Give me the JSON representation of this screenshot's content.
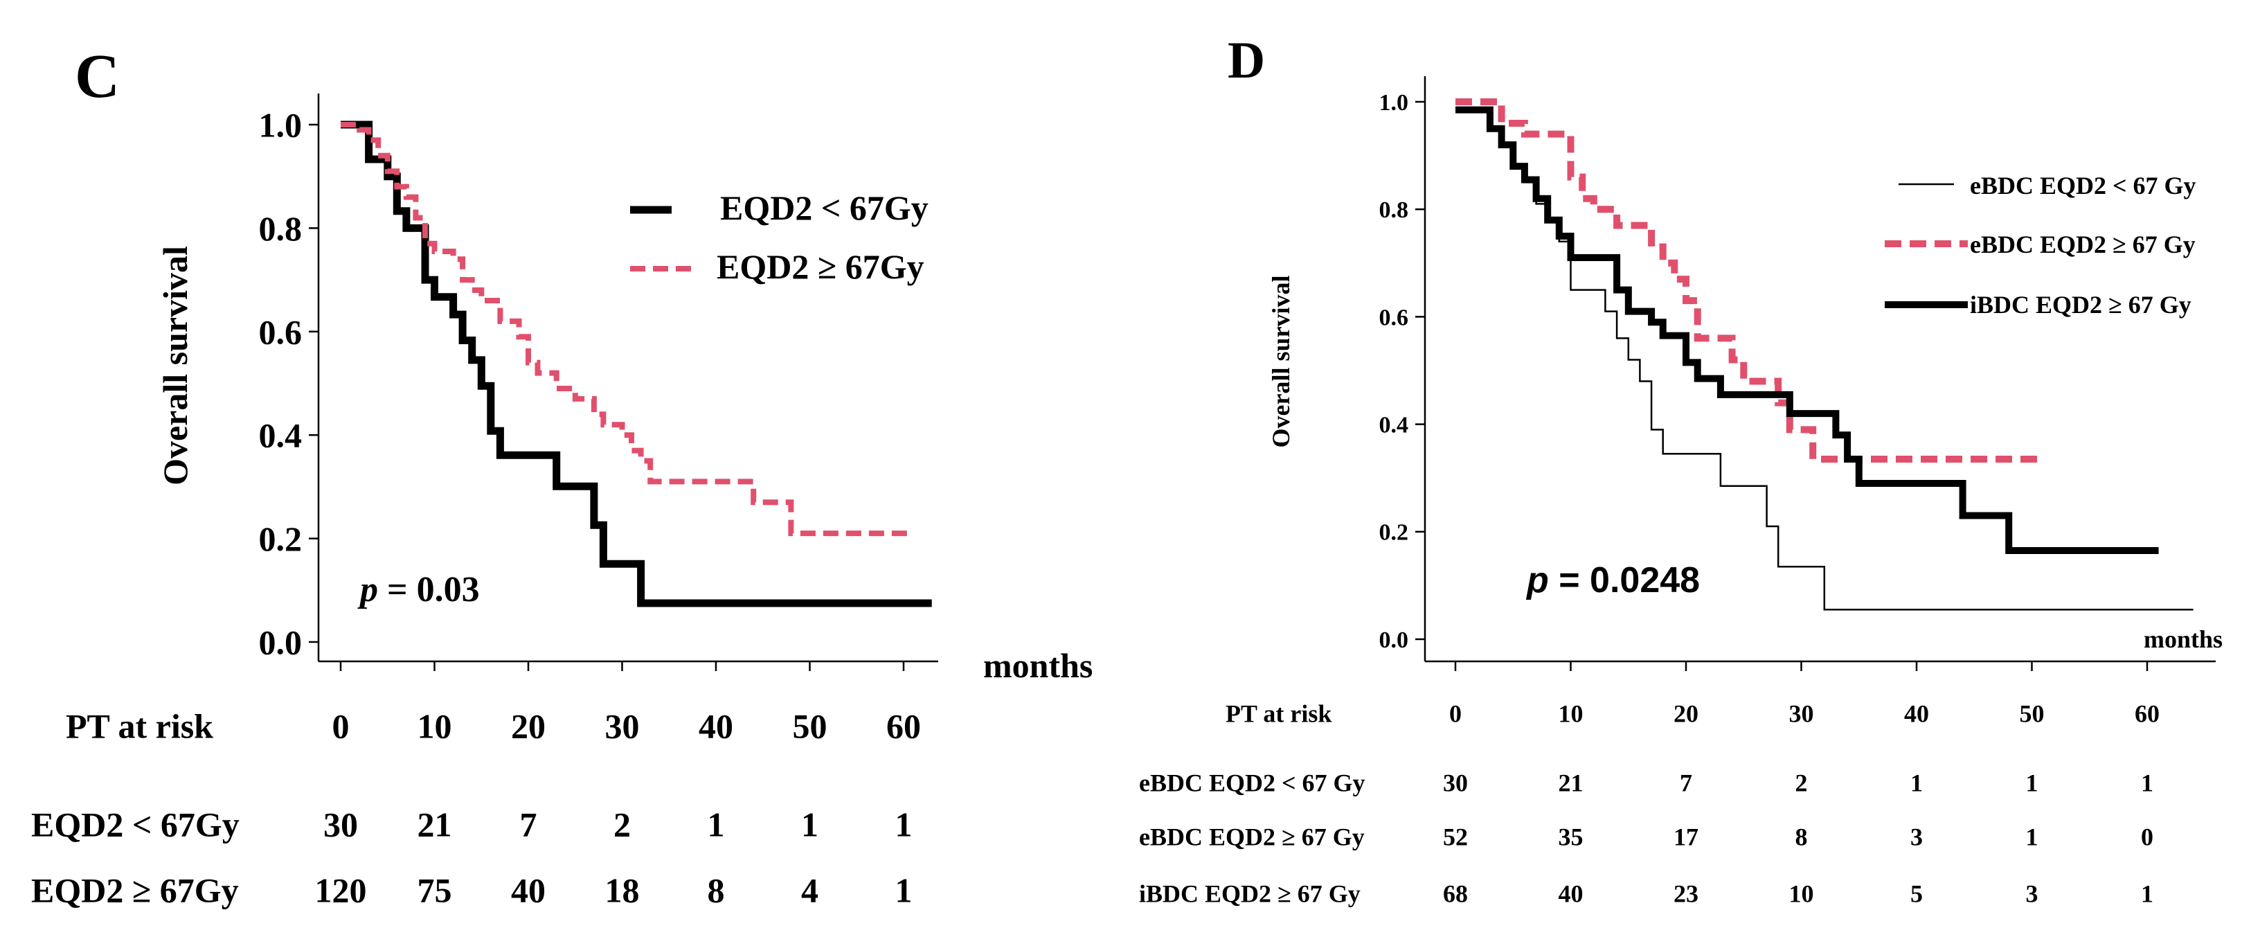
{
  "colors": {
    "black": "#000000",
    "pink": "#e0506c"
  },
  "chart_data": [
    {
      "type": "line",
      "subtype": "kaplan-meier",
      "panel": "C",
      "ylabel": "Overall survival",
      "xlabel": "months",
      "xlim": [
        0,
        63
      ],
      "ylim": [
        0,
        1
      ],
      "yticks": [
        "0.0",
        "0.2",
        "0.4",
        "0.6",
        "0.8",
        "1.0"
      ],
      "xticks": [
        "0",
        "10",
        "20",
        "30",
        "40",
        "50",
        "60"
      ],
      "p_label": "p",
      "p_value": "= 0.03",
      "series": [
        {
          "name": "EQD2 < 67Gy",
          "color": "#000000",
          "style": "solid",
          "points": [
            [
              0,
              1.0
            ],
            [
              3,
              1.0
            ],
            [
              3,
              0.933
            ],
            [
              5,
              0.933
            ],
            [
              5,
              0.9
            ],
            [
              6,
              0.9
            ],
            [
              6,
              0.833
            ],
            [
              7,
              0.833
            ],
            [
              7,
              0.8
            ],
            [
              9,
              0.8
            ],
            [
              9,
              0.7
            ],
            [
              10,
              0.7
            ],
            [
              10,
              0.667
            ],
            [
              12,
              0.667
            ],
            [
              12,
              0.633
            ],
            [
              13,
              0.633
            ],
            [
              13,
              0.583
            ],
            [
              14,
              0.583
            ],
            [
              14,
              0.545
            ],
            [
              15,
              0.545
            ],
            [
              15,
              0.495
            ],
            [
              16,
              0.495
            ],
            [
              16,
              0.408
            ],
            [
              17,
              0.408
            ],
            [
              17,
              0.361
            ],
            [
              23,
              0.361
            ],
            [
              23,
              0.301
            ],
            [
              27,
              0.301
            ],
            [
              27,
              0.226
            ],
            [
              28,
              0.226
            ],
            [
              28,
              0.151
            ],
            [
              32,
              0.151
            ],
            [
              32,
              0.075
            ],
            [
              63,
              0.075
            ]
          ]
        },
        {
          "name": "EQD2 ≥ 67Gy",
          "color": "#e0506c",
          "style": "dashed",
          "points": [
            [
              0,
              1.0
            ],
            [
              2,
              1.0
            ],
            [
              2,
              0.99
            ],
            [
              3,
              0.99
            ],
            [
              3,
              0.97
            ],
            [
              4,
              0.97
            ],
            [
              4,
              0.94
            ],
            [
              5,
              0.94
            ],
            [
              5,
              0.91
            ],
            [
              6,
              0.91
            ],
            [
              6,
              0.88
            ],
            [
              7,
              0.88
            ],
            [
              7,
              0.86
            ],
            [
              8,
              0.86
            ],
            [
              8,
              0.82
            ],
            [
              9,
              0.82
            ],
            [
              9,
              0.77
            ],
            [
              10,
              0.77
            ],
            [
              10,
              0.755
            ],
            [
              12,
              0.755
            ],
            [
              12,
              0.74
            ],
            [
              13,
              0.74
            ],
            [
              13,
              0.7
            ],
            [
              14,
              0.7
            ],
            [
              14,
              0.68
            ],
            [
              15,
              0.68
            ],
            [
              15,
              0.66
            ],
            [
              17,
              0.66
            ],
            [
              17,
              0.62
            ],
            [
              19,
              0.62
            ],
            [
              19,
              0.59
            ],
            [
              20,
              0.59
            ],
            [
              20,
              0.54
            ],
            [
              21,
              0.54
            ],
            [
              21,
              0.52
            ],
            [
              23,
              0.52
            ],
            [
              23,
              0.49
            ],
            [
              25,
              0.49
            ],
            [
              25,
              0.47
            ],
            [
              27,
              0.47
            ],
            [
              27,
              0.44
            ],
            [
              28,
              0.44
            ],
            [
              28,
              0.42
            ],
            [
              30,
              0.42
            ],
            [
              30,
              0.4
            ],
            [
              31,
              0.4
            ],
            [
              31,
              0.37
            ],
            [
              32,
              0.37
            ],
            [
              32,
              0.35
            ],
            [
              33,
              0.35
            ],
            [
              33,
              0.31
            ],
            [
              44,
              0.31
            ],
            [
              44,
              0.27
            ],
            [
              48,
              0.27
            ],
            [
              48,
              0.21
            ],
            [
              61,
              0.21
            ]
          ]
        }
      ],
      "risk_table": {
        "title": "PT at risk",
        "rows": [
          {
            "label": "EQD2 < 67Gy",
            "values": [
              "30",
              "21",
              "7",
              "2",
              "1",
              "1",
              "1"
            ]
          },
          {
            "label": "EQD2 ≥ 67Gy",
            "values": [
              "120",
              "75",
              "40",
              "18",
              "8",
              "4",
              "1"
            ]
          }
        ]
      }
    },
    {
      "type": "line",
      "subtype": "kaplan-meier",
      "panel": "D",
      "ylabel": "Overall survival",
      "xlabel": "months",
      "xlim": [
        0,
        64
      ],
      "ylim": [
        0,
        1
      ],
      "yticks": [
        "0.0",
        "0.2",
        "0.4",
        "0.6",
        "0.8",
        "1.0"
      ],
      "xticks": [
        "0",
        "10",
        "20",
        "30",
        "40",
        "50",
        "60"
      ],
      "p_label": "p",
      "p_value": "= 0.0248",
      "series": [
        {
          "name": "eBDC EQD2 < 67 Gy",
          "color": "#000000",
          "style": "thin",
          "points": [
            [
              0,
              0.983
            ],
            [
              3,
              0.983
            ],
            [
              3,
              0.95
            ],
            [
              4,
              0.95
            ],
            [
              4,
              0.917
            ],
            [
              5,
              0.917
            ],
            [
              5,
              0.88
            ],
            [
              6,
              0.88
            ],
            [
              6,
              0.85
            ],
            [
              7,
              0.85
            ],
            [
              7,
              0.81
            ],
            [
              8,
              0.81
            ],
            [
              8,
              0.78
            ],
            [
              9,
              0.78
            ],
            [
              9,
              0.74
            ],
            [
              10,
              0.74
            ],
            [
              10,
              0.65
            ],
            [
              13,
              0.65
            ],
            [
              13,
              0.61
            ],
            [
              14,
              0.61
            ],
            [
              14,
              0.56
            ],
            [
              15,
              0.56
            ],
            [
              15,
              0.52
            ],
            [
              16,
              0.52
            ],
            [
              16,
              0.48
            ],
            [
              17,
              0.48
            ],
            [
              17,
              0.39
            ],
            [
              18,
              0.39
            ],
            [
              18,
              0.345
            ],
            [
              23,
              0.345
            ],
            [
              23,
              0.285
            ],
            [
              27,
              0.285
            ],
            [
              27,
              0.21
            ],
            [
              28,
              0.21
            ],
            [
              28,
              0.135
            ],
            [
              32,
              0.135
            ],
            [
              32,
              0.055
            ],
            [
              64,
              0.055
            ]
          ]
        },
        {
          "name": "eBDC EQD2 ≥ 67 Gy",
          "color": "#e0506c",
          "style": "dashed",
          "points": [
            [
              0,
              1.0
            ],
            [
              4,
              1.0
            ],
            [
              4,
              0.96
            ],
            [
              6,
              0.96
            ],
            [
              6,
              0.94
            ],
            [
              10,
              0.94
            ],
            [
              10,
              0.86
            ],
            [
              11,
              0.86
            ],
            [
              11,
              0.82
            ],
            [
              12,
              0.82
            ],
            [
              12,
              0.8
            ],
            [
              14,
              0.8
            ],
            [
              14,
              0.77
            ],
            [
              17,
              0.77
            ],
            [
              17,
              0.73
            ],
            [
              18,
              0.73
            ],
            [
              18,
              0.7
            ],
            [
              19,
              0.7
            ],
            [
              19,
              0.67
            ],
            [
              20,
              0.67
            ],
            [
              20,
              0.63
            ],
            [
              21,
              0.63
            ],
            [
              21,
              0.56
            ],
            [
              24,
              0.56
            ],
            [
              24,
              0.52
            ],
            [
              25,
              0.52
            ],
            [
              25,
              0.48
            ],
            [
              28,
              0.48
            ],
            [
              28,
              0.44
            ],
            [
              29,
              0.44
            ],
            [
              29,
              0.39
            ],
            [
              31,
              0.39
            ],
            [
              31,
              0.335
            ],
            [
              51,
              0.335
            ]
          ]
        },
        {
          "name": "iBDC EQD2 ≥ 67 Gy",
          "color": "#000000",
          "style": "thick",
          "points": [
            [
              0,
              0.985
            ],
            [
              3,
              0.985
            ],
            [
              3,
              0.95
            ],
            [
              4,
              0.95
            ],
            [
              4,
              0.92
            ],
            [
              5,
              0.92
            ],
            [
              5,
              0.88
            ],
            [
              6,
              0.88
            ],
            [
              6,
              0.855
            ],
            [
              7,
              0.855
            ],
            [
              7,
              0.82
            ],
            [
              8,
              0.82
            ],
            [
              8,
              0.78
            ],
            [
              9,
              0.78
            ],
            [
              9,
              0.75
            ],
            [
              10,
              0.75
            ],
            [
              10,
              0.71
            ],
            [
              14,
              0.71
            ],
            [
              14,
              0.65
            ],
            [
              15,
              0.65
            ],
            [
              15,
              0.61
            ],
            [
              17,
              0.61
            ],
            [
              17,
              0.59
            ],
            [
              18,
              0.59
            ],
            [
              18,
              0.565
            ],
            [
              20,
              0.565
            ],
            [
              20,
              0.515
            ],
            [
              21,
              0.515
            ],
            [
              21,
              0.485
            ],
            [
              23,
              0.485
            ],
            [
              23,
              0.455
            ],
            [
              29,
              0.455
            ],
            [
              29,
              0.42
            ],
            [
              33,
              0.42
            ],
            [
              33,
              0.38
            ],
            [
              34,
              0.38
            ],
            [
              34,
              0.335
            ],
            [
              35,
              0.335
            ],
            [
              35,
              0.29
            ],
            [
              44,
              0.29
            ],
            [
              44,
              0.23
            ],
            [
              48,
              0.23
            ],
            [
              48,
              0.165
            ],
            [
              61,
              0.165
            ]
          ]
        }
      ],
      "risk_table": {
        "title": "PT at risk",
        "rows": [
          {
            "label": "eBDC EQD2 < 67 Gy",
            "values": [
              "30",
              "21",
              "7",
              "2",
              "1",
              "1",
              "1"
            ]
          },
          {
            "label": "eBDC EQD2 ≥ 67 Gy",
            "values": [
              "52",
              "35",
              "17",
              "8",
              "3",
              "1",
              "0"
            ]
          },
          {
            "label": "iBDC EQD2 ≥ 67 Gy",
            "values": [
              "68",
              "40",
              "23",
              "10",
              "5",
              "3",
              "1"
            ]
          }
        ]
      }
    }
  ]
}
